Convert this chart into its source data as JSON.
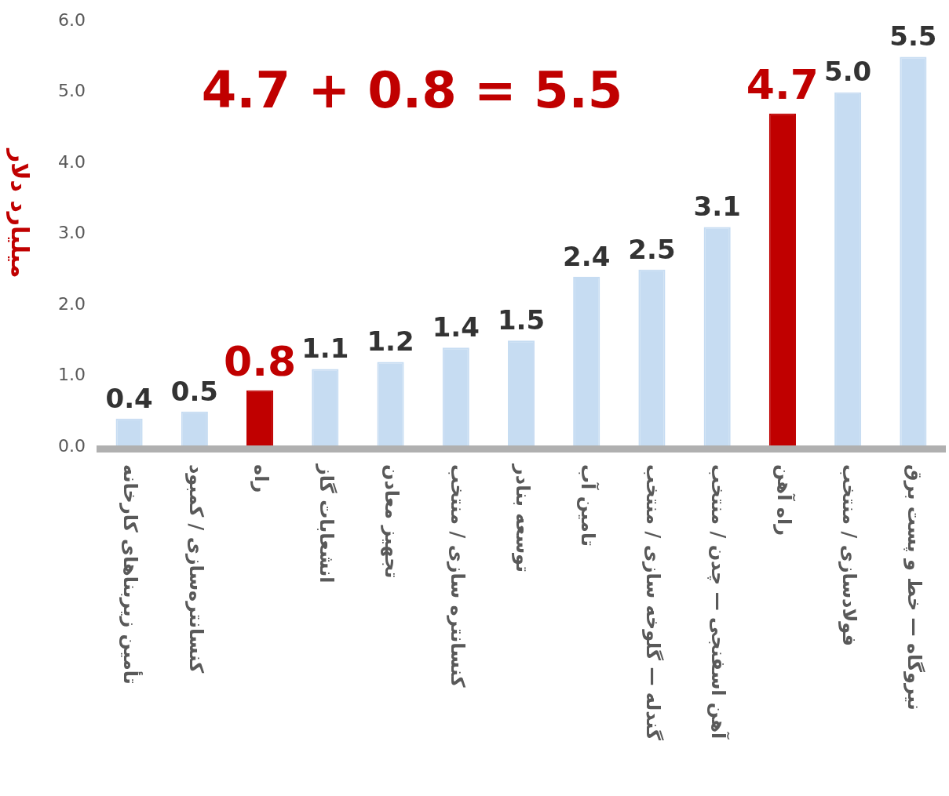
{
  "chart_data": {
    "type": "bar",
    "title": "4.7 + 0.8 = 5.5",
    "ylabel": "میلیارد دلار",
    "categories": [
      "تأمین زیربناهای کارخانه",
      "کنسانتره‌سازی / کمبود",
      "راه",
      "انشعابات گاز",
      "تجهیز معادن",
      "کنسانتره سازی / منتخب",
      "توسعه بنادر",
      "تامین آب",
      "گندله — گلوخه سازی / منتخب",
      "آهن اسفنجی — چدن / منتخب",
      "راه آهن",
      "فولادسازی / منتخب",
      "نیروگاه — خط و پست برق"
    ],
    "values": [
      0.4,
      0.5,
      0.8,
      1.1,
      1.2,
      1.4,
      1.5,
      2.4,
      2.5,
      3.1,
      4.7,
      5.0,
      5.5
    ],
    "colors": [
      "#c6dcf2",
      "#c6dcf2",
      "#c00000",
      "#c6dcf2",
      "#c6dcf2",
      "#c6dcf2",
      "#c6dcf2",
      "#c6dcf2",
      "#c6dcf2",
      "#c6dcf2",
      "#c00000",
      "#c6dcf2",
      "#c6dcf2"
    ],
    "ylim": [
      0,
      6
    ],
    "yticks": [
      {
        "value": 0,
        "label": "0.0"
      },
      {
        "value": 1,
        "label": "1.0"
      },
      {
        "value": 2,
        "label": "2.0"
      },
      {
        "value": 3,
        "label": "3.0"
      },
      {
        "value": 4,
        "label": "4.0"
      },
      {
        "value": 5,
        "label": "5.0"
      },
      {
        "value": 6,
        "label": "6.0"
      }
    ],
    "value_labels": [
      "0.4",
      "0.5",
      "0.8",
      "1.1",
      "1.2",
      "1.4",
      "1.5",
      "2.4",
      "2.5",
      "3.1",
      "4.7",
      "5.0",
      "5.5"
    ],
    "grid": false,
    "legend": false
  }
}
